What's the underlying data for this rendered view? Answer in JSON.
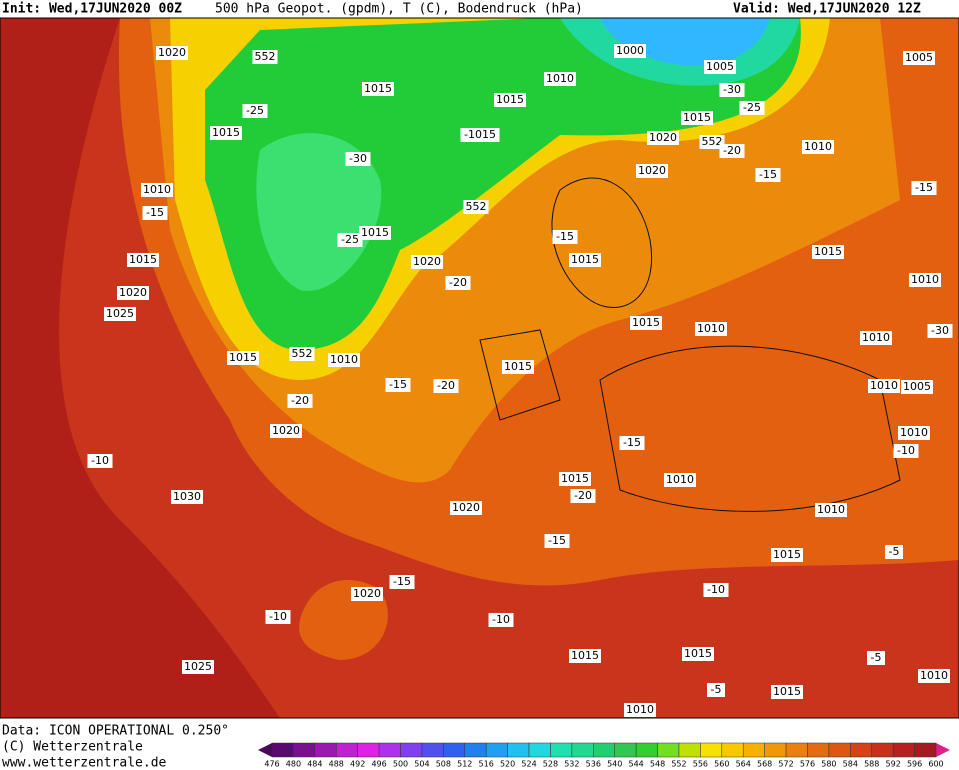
{
  "header": {
    "init": "Init: Wed,17JUN2020 00Z",
    "title": "500 hPa Geopot. (gpdm), T (C), Bodendruck (hPa)",
    "valid": "Valid: Wed,17JUN2020 12Z"
  },
  "labels": [
    "1020",
    "552",
    "1000",
    "1005",
    "1005",
    "1015",
    "1010",
    "1015",
    "-25",
    "-30",
    "-25",
    "1015",
    "-1015",
    "1020",
    "1015",
    "552",
    "-20",
    "1010",
    "-30",
    "1020",
    "-15",
    "-15",
    "1010",
    "-15",
    "552",
    "-15",
    "-25",
    "1015",
    "1015",
    "1015",
    "1015",
    "1020",
    "-20",
    "1010",
    "1020",
    "1025",
    "1015",
    "1010",
    "1010",
    "-30",
    "1015",
    "552",
    "1010",
    "1015",
    "-15",
    "-20",
    "1010",
    "1005",
    "-20",
    "1020",
    "1010",
    "-15",
    "-10",
    "-10",
    "1015",
    "1010",
    "-20",
    "1030",
    "1020",
    "1010",
    "-15",
    "1015",
    "-5",
    "-15",
    "1020",
    "-10",
    "-10",
    "-10",
    "1015",
    "1015",
    "-5",
    "1025",
    "-5",
    "1015",
    "1010",
    "1010"
  ],
  "footer": {
    "data": "Data: ICON OPERATIONAL 0.250°",
    "copyright": "(C) Wetterzentrale",
    "url": "www.wetterzentrale.de"
  },
  "scale": [
    476,
    480,
    484,
    488,
    492,
    496,
    500,
    504,
    508,
    512,
    516,
    520,
    524,
    528,
    532,
    536,
    540,
    544,
    548,
    552,
    556,
    560,
    564,
    568,
    572,
    576,
    580,
    584,
    588,
    592,
    596,
    600
  ]
}
